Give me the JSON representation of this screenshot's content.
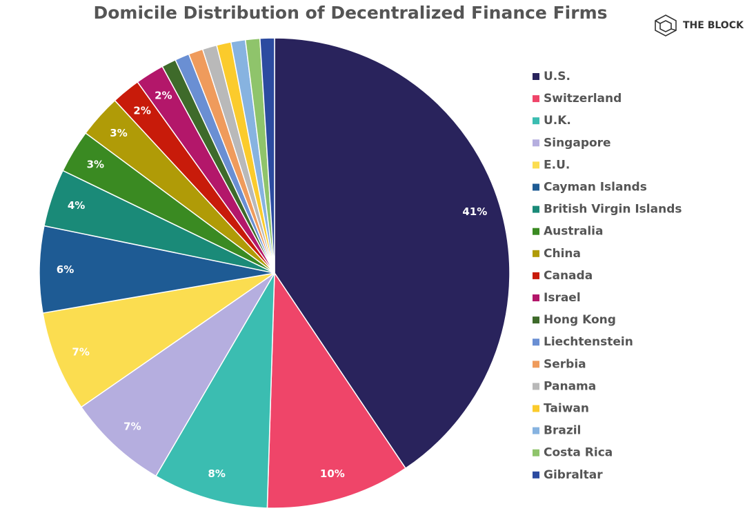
{
  "brand": "THE BLOCK",
  "chart_data": {
    "type": "pie",
    "title": "Domicile Distribution of Decentralized Finance Firms",
    "categories": [
      "U.S.",
      "Switzerland",
      "U.K.",
      "Singapore",
      "E.U.",
      "Cayman Islands",
      "British Virgin Islands",
      "Australia",
      "China",
      "Canada",
      "Israel",
      "Hong Kong",
      "Liechtenstein",
      "Serbia",
      "Panama",
      "Taiwan",
      "Brazil",
      "Costa Rica",
      "Gibraltar"
    ],
    "values": [
      41,
      10,
      8,
      7,
      7,
      6,
      4,
      3,
      3,
      2,
      2,
      1,
      1,
      1,
      1,
      1,
      1,
      1,
      1
    ],
    "value_labels": [
      "41%",
      "10%",
      "8%",
      "7%",
      "7%",
      "6%",
      "4%",
      "3%",
      "3%",
      "2%",
      "2%",
      null,
      null,
      null,
      null,
      null,
      null,
      null,
      null
    ],
    "colors": [
      "#29235c",
      "#ef4569",
      "#3bbdb1",
      "#b5aedf",
      "#fbdd50",
      "#1e5b94",
      "#1a8a78",
      "#3a8a22",
      "#b09b07",
      "#c81b0a",
      "#b3176a",
      "#3e6a2a",
      "#6a8fd3",
      "#ef9b5c",
      "#b9b9b9",
      "#fbcb2c",
      "#87b3e0",
      "#8fc46b",
      "#2c4ba0"
    ],
    "legend": "right"
  }
}
